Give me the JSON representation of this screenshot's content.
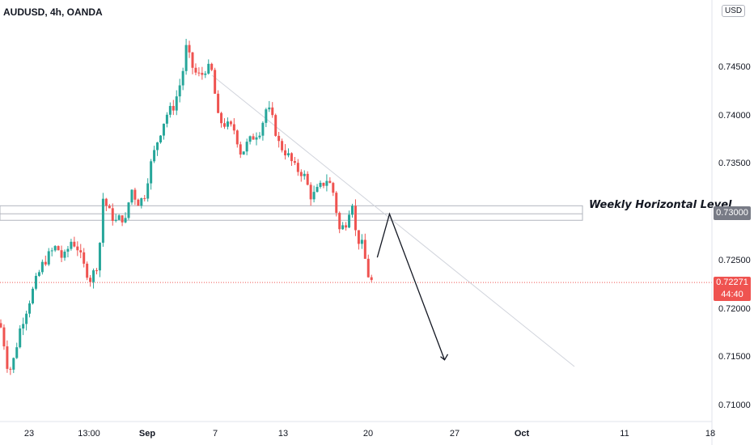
{
  "header": {
    "title": "AUDUSD, 4h, OANDA",
    "currency_button": "USD"
  },
  "price_tag": {
    "price": "0.72271",
    "countdown": "44:40"
  },
  "level_tag": "0.73000",
  "annotation": {
    "level_label": "Weekly Horizontal Level"
  },
  "colors": {
    "up": "#26a69a",
    "down": "#ef5350",
    "level_box": "#b2b5be",
    "price_line": "#ef5350",
    "trendline": "#d1d4dc"
  },
  "chart_data": {
    "type": "candlestick",
    "symbol": "AUDUSD",
    "timeframe": "4h",
    "ylim": [
      0.7075,
      0.7485
    ],
    "y_ticks": [
      "0.71000",
      "0.71500",
      "0.72000",
      "0.72500",
      "0.73000",
      "0.73500",
      "0.74000",
      "0.74500"
    ],
    "x_ticks": [
      {
        "label": "23",
        "bold": false
      },
      {
        "label": "13:00",
        "bold": false
      },
      {
        "label": "Sep",
        "bold": true
      },
      {
        "label": "7",
        "bold": false
      },
      {
        "label": "13",
        "bold": false
      },
      {
        "label": "20",
        "bold": false
      },
      {
        "label": "27",
        "bold": false
      },
      {
        "label": "Oct",
        "bold": true
      },
      {
        "label": "11",
        "bold": false
      },
      {
        "label": "18",
        "bold": false
      }
    ],
    "horizontal_level": {
      "low": 0.7294,
      "high": 0.7304
    },
    "last_price": 0.72271,
    "waypoints": [
      [
        0,
        0.7185
      ],
      [
        7,
        0.7155
      ],
      [
        10,
        0.7135
      ],
      [
        15,
        0.714
      ],
      [
        25,
        0.718
      ],
      [
        35,
        0.7205
      ],
      [
        45,
        0.723
      ],
      [
        52,
        0.7245
      ],
      [
        60,
        0.7255
      ],
      [
        70,
        0.7265
      ],
      [
        78,
        0.725
      ],
      [
        88,
        0.727
      ],
      [
        95,
        0.7265
      ],
      [
        103,
        0.7245
      ],
      [
        112,
        0.723
      ],
      [
        122,
        0.725
      ],
      [
        127,
        0.7315
      ],
      [
        135,
        0.73
      ],
      [
        143,
        0.729
      ],
      [
        150,
        0.7295
      ],
      [
        155,
        0.729
      ],
      [
        162,
        0.7325
      ],
      [
        170,
        0.731
      ],
      [
        178,
        0.7315
      ],
      [
        185,
        0.7345
      ],
      [
        195,
        0.7375
      ],
      [
        205,
        0.74
      ],
      [
        215,
        0.741
      ],
      [
        225,
        0.744
      ],
      [
        230,
        0.747
      ],
      [
        240,
        0.7445
      ],
      [
        248,
        0.744
      ],
      [
        255,
        0.745
      ],
      [
        262,
        0.7445
      ],
      [
        270,
        0.7395
      ],
      [
        280,
        0.739
      ],
      [
        290,
        0.7385
      ],
      [
        298,
        0.736
      ],
      [
        305,
        0.737
      ],
      [
        315,
        0.738
      ],
      [
        322,
        0.7385
      ],
      [
        330,
        0.741
      ],
      [
        337,
        0.7395
      ],
      [
        345,
        0.737
      ],
      [
        355,
        0.736
      ],
      [
        365,
        0.7345
      ],
      [
        375,
        0.734
      ],
      [
        385,
        0.7315
      ],
      [
        395,
        0.7325
      ],
      [
        405,
        0.7335
      ],
      [
        412,
        0.732
      ],
      [
        420,
        0.728
      ],
      [
        428,
        0.729
      ],
      [
        435,
        0.7315
      ],
      [
        440,
        0.7275
      ],
      [
        448,
        0.7265
      ],
      [
        455,
        0.7235
      ],
      [
        460,
        0.7227
      ]
    ],
    "projection_path": [
      [
        0.7253,
        20.3
      ],
      [
        0.7298,
        20.7
      ],
      [
        0.7147,
        22.5
      ]
    ]
  }
}
